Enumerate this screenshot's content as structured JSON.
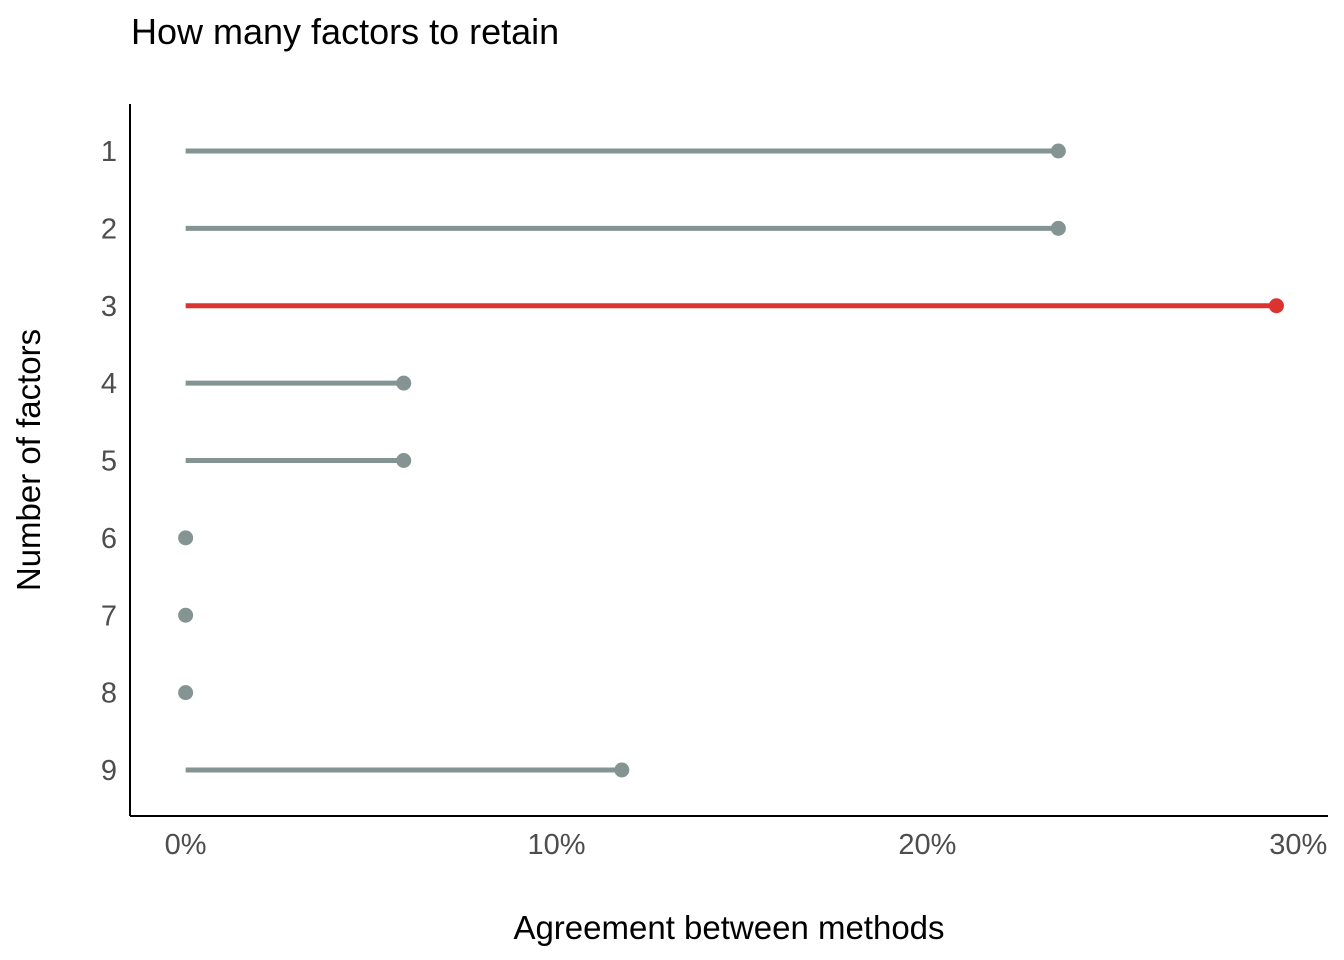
{
  "chart_data": {
    "type": "lollipop",
    "orientation": "horizontal",
    "title": "How many factors to retain",
    "xlabel": "Agreement between methods",
    "ylabel": "Number of factors",
    "categories": [
      "1",
      "2",
      "3",
      "4",
      "5",
      "6",
      "7",
      "8",
      "9"
    ],
    "values": [
      0.2353,
      0.2353,
      0.2941,
      0.0588,
      0.0588,
      0,
      0,
      0,
      0.1176
    ],
    "highlight_category": "3",
    "xlim": [
      -0.015,
      0.308
    ],
    "x_ticks": [
      0,
      0.1,
      0.2,
      0.3
    ],
    "x_tick_labels": [
      "0%",
      "10%",
      "20%",
      "30%"
    ],
    "grid": false,
    "colors": {
      "default": "#849492",
      "highlight": "#dc3330",
      "axis": "#000000",
      "tick_text": "#4d4d4d"
    }
  }
}
